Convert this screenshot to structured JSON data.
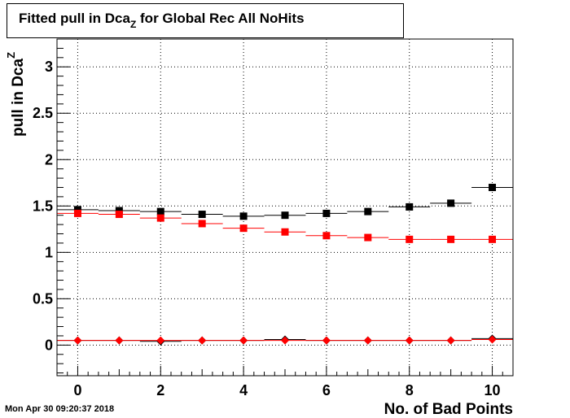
{
  "title": {
    "main": "Fitted pull in Dca",
    "sub": "Z",
    "rest": " for Global Rec All NoHits"
  },
  "timestamp": "Mon Apr 30 09:20:37 2018",
  "chart_data": {
    "type": "scatter",
    "xlabel": "No. of Bad Points",
    "ylabel": "pull in Dca",
    "ylabel_sub": "Z",
    "xlim": [
      -0.5,
      10.5
    ],
    "ylim": [
      -0.33,
      3.3
    ],
    "xticks": [
      0,
      2,
      4,
      6,
      8,
      10
    ],
    "xtick_labels": [
      "0",
      "2",
      "4",
      "6",
      "8",
      "10"
    ],
    "yticks": [
      0,
      0.5,
      1,
      1.5,
      2,
      2.5,
      3
    ],
    "ytick_labels": [
      "0",
      "0.5",
      "1",
      "1.5",
      "2",
      "2.5",
      "3"
    ],
    "grid": true,
    "x": [
      0,
      1,
      2,
      3,
      4,
      5,
      6,
      7,
      8,
      9,
      10
    ],
    "series": [
      {
        "marker": "square",
        "color": "#000000",
        "values": [
          1.46,
          1.45,
          1.44,
          1.41,
          1.39,
          1.4,
          1.42,
          1.44,
          1.49,
          1.53,
          1.7
        ]
      },
      {
        "marker": "square",
        "color": "#ff0000",
        "values": [
          1.42,
          1.41,
          1.37,
          1.31,
          1.26,
          1.22,
          1.18,
          1.16,
          1.14,
          1.14,
          1.14
        ]
      },
      {
        "marker": "diamond",
        "color": "#000000",
        "values": [
          0.05,
          0.05,
          0.04,
          0.05,
          0.05,
          0.06,
          0.05,
          0.05,
          0.05,
          0.05,
          0.07
        ]
      },
      {
        "marker": "diamond",
        "color": "#ff0000",
        "values": [
          0.05,
          0.05,
          0.05,
          0.05,
          0.05,
          0.05,
          0.05,
          0.05,
          0.05,
          0.05,
          0.06
        ]
      }
    ]
  }
}
